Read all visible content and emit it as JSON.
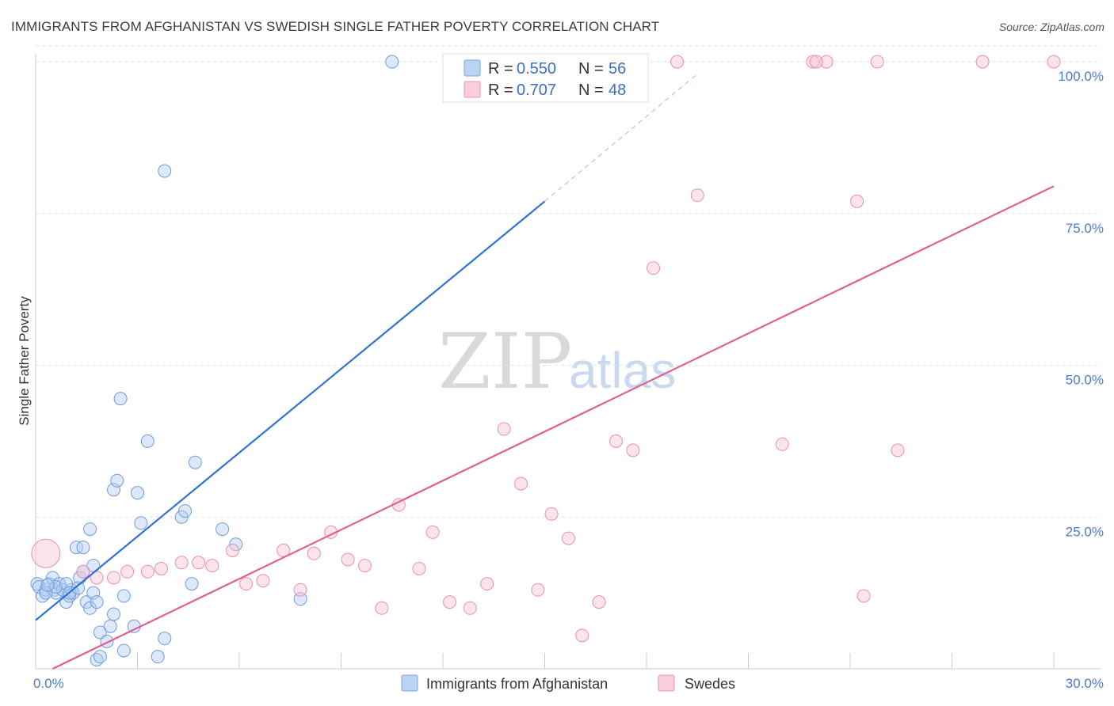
{
  "chart_data": {
    "type": "scatter",
    "title": "IMMIGRANTS FROM AFGHANISTAN VS SWEDISH SINGLE FATHER POVERTY CORRELATION CHART",
    "source": "Source: ZipAtlas.com",
    "xlabel": "",
    "ylabel": "Single Father Poverty",
    "xlim": [
      0,
      30
    ],
    "ylim": [
      0,
      100
    ],
    "x_ticks": [
      "0.0%",
      "30.0%"
    ],
    "y_ticks": [
      "25.0%",
      "50.0%",
      "75.0%",
      "100.0%"
    ],
    "y_tick_values": [
      25,
      50,
      75,
      100
    ],
    "grid": true,
    "legend_placement": "top-center",
    "watermark": {
      "zip": "ZIP",
      "atlas": "atlas"
    },
    "series": [
      {
        "name": "Immigrants from Afghanistan",
        "color": "#8fb6ea",
        "line_color": "#2f72d4",
        "r_label": "R =",
        "r_value": "0.550",
        "n_label": "N =",
        "n_value": "56",
        "trend": {
          "x0": 0,
          "y0": 8,
          "x1": 15,
          "y1": 77,
          "dash_x1": 19.5,
          "dash_y1": 98
        },
        "points": [
          [
            0.05,
            14
          ],
          [
            0.1,
            13.5
          ],
          [
            0.2,
            12
          ],
          [
            0.3,
            13
          ],
          [
            0.4,
            14
          ],
          [
            0.5,
            15
          ],
          [
            0.55,
            13
          ],
          [
            0.6,
            12.5
          ],
          [
            0.7,
            14
          ],
          [
            0.8,
            13
          ],
          [
            0.9,
            11
          ],
          [
            1.0,
            12
          ],
          [
            1.05,
            13
          ],
          [
            1.1,
            12.5
          ],
          [
            1.2,
            20
          ],
          [
            1.3,
            15
          ],
          [
            1.4,
            16
          ],
          [
            1.4,
            20
          ],
          [
            1.5,
            11
          ],
          [
            1.6,
            23
          ],
          [
            1.6,
            10
          ],
          [
            1.7,
            17
          ],
          [
            1.7,
            12.5
          ],
          [
            1.8,
            11
          ],
          [
            1.8,
            1.5
          ],
          [
            1.9,
            6
          ],
          [
            1.9,
            2
          ],
          [
            2.1,
            4.5
          ],
          [
            2.2,
            7
          ],
          [
            2.3,
            29.5
          ],
          [
            2.3,
            9
          ],
          [
            2.4,
            31
          ],
          [
            2.5,
            44.5
          ],
          [
            2.6,
            12
          ],
          [
            2.6,
            3
          ],
          [
            2.9,
            7
          ],
          [
            3.0,
            29
          ],
          [
            3.1,
            24
          ],
          [
            3.3,
            37.5
          ],
          [
            3.6,
            2
          ],
          [
            3.8,
            5
          ],
          [
            3.8,
            82
          ],
          [
            4.3,
            25
          ],
          [
            4.4,
            26
          ],
          [
            4.6,
            14
          ],
          [
            4.7,
            34
          ],
          [
            5.5,
            23
          ],
          [
            5.9,
            20.5
          ],
          [
            7.8,
            11.5
          ],
          [
            10.5,
            100
          ],
          [
            0.3,
            12.5
          ],
          [
            0.6,
            13.5
          ],
          [
            0.9,
            14
          ],
          [
            1.0,
            12.5
          ],
          [
            0.35,
            13.8
          ],
          [
            1.25,
            13.3
          ]
        ]
      },
      {
        "name": "Swedes",
        "color": "#f5a9c2",
        "line_color": "#e0608e",
        "r_label": "R =",
        "r_value": "0.707",
        "n_label": "N =",
        "n_value": "48",
        "trend": {
          "x0": 0.5,
          "y0": 0,
          "x1": 30,
          "y1": 79.5
        },
        "points": [
          [
            0.3,
            19
          ],
          [
            1.4,
            16
          ],
          [
            1.8,
            15
          ],
          [
            2.3,
            15
          ],
          [
            2.7,
            16
          ],
          [
            3.3,
            16
          ],
          [
            3.7,
            16.5
          ],
          [
            4.3,
            17.5
          ],
          [
            4.8,
            17.5
          ],
          [
            5.2,
            17
          ],
          [
            5.8,
            19.5
          ],
          [
            6.2,
            14
          ],
          [
            6.7,
            14.5
          ],
          [
            7.3,
            19.5
          ],
          [
            7.8,
            13
          ],
          [
            8.2,
            19
          ],
          [
            8.7,
            22.5
          ],
          [
            9.2,
            18
          ],
          [
            9.7,
            17
          ],
          [
            10.2,
            10
          ],
          [
            10.7,
            27
          ],
          [
            11.3,
            16.5
          ],
          [
            11.7,
            22.5
          ],
          [
            12.2,
            11
          ],
          [
            12.8,
            10
          ],
          [
            13.3,
            14
          ],
          [
            13.8,
            39.5
          ],
          [
            14.3,
            30.5
          ],
          [
            14.8,
            13
          ],
          [
            15.2,
            25.5
          ],
          [
            15.7,
            21.5
          ],
          [
            16.1,
            5.5
          ],
          [
            16.6,
            11
          ],
          [
            17.1,
            37.5
          ],
          [
            17.6,
            36
          ],
          [
            18.2,
            66
          ],
          [
            18.9,
            100
          ],
          [
            19.5,
            78
          ],
          [
            22.0,
            37
          ],
          [
            22.9,
            100
          ],
          [
            23.3,
            100
          ],
          [
            24.2,
            77
          ],
          [
            24.8,
            100
          ],
          [
            24.4,
            12
          ],
          [
            25.4,
            36
          ],
          [
            27.9,
            100
          ],
          [
            30.0,
            100
          ],
          [
            23.0,
            100
          ]
        ]
      }
    ]
  }
}
